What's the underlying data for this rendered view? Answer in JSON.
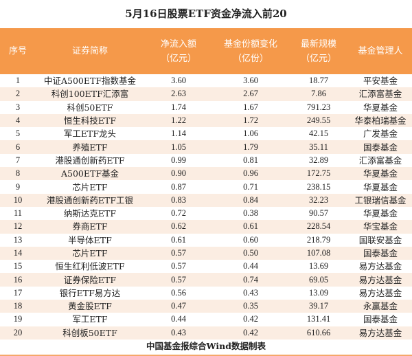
{
  "title": "5月16日股票ETF资金净流入前20",
  "header": {
    "columns": [
      {
        "line1": "序号",
        "line2": ""
      },
      {
        "line1": "证券简称",
        "line2": ""
      },
      {
        "line1": "净流入额",
        "line2": "（亿元）"
      },
      {
        "line1": "基金份额变化",
        "line2": "（亿份）"
      },
      {
        "line1": "最新规模",
        "line2": "（亿元）"
      },
      {
        "line1": "基金管理人",
        "line2": ""
      }
    ]
  },
  "colors": {
    "header_bg": "#F5994A",
    "alt_row_bg": "#FBEDE2",
    "footer_line": "#F5A86A"
  },
  "rows": [
    {
      "rank": "1",
      "name": "中证A500ETF指数基金",
      "net_inflow": "3.60",
      "share_change": "3.60",
      "aum": "18.77",
      "manager": "平安基金"
    },
    {
      "rank": "2",
      "name": "科创100ETF汇添富",
      "net_inflow": "2.63",
      "share_change": "2.67",
      "aum": "7.86",
      "manager": "汇添富基金"
    },
    {
      "rank": "3",
      "name": "科创50ETF",
      "net_inflow": "1.74",
      "share_change": "1.67",
      "aum": "791.23",
      "manager": "华夏基金"
    },
    {
      "rank": "4",
      "name": "恒生科技ETF",
      "net_inflow": "1.22",
      "share_change": "1.72",
      "aum": "249.55",
      "manager": "华泰柏瑞基金"
    },
    {
      "rank": "5",
      "name": "军工ETF龙头",
      "net_inflow": "1.14",
      "share_change": "1.06",
      "aum": "42.15",
      "manager": "广发基金"
    },
    {
      "rank": "6",
      "name": "养殖ETF",
      "net_inflow": "1.05",
      "share_change": "1.79",
      "aum": "35.11",
      "manager": "国泰基金"
    },
    {
      "rank": "7",
      "name": "港股通创新药ETF",
      "net_inflow": "0.99",
      "share_change": "0.81",
      "aum": "32.89",
      "manager": "汇添富基金"
    },
    {
      "rank": "8",
      "name": "A500ETF基金",
      "net_inflow": "0.90",
      "share_change": "0.96",
      "aum": "172.75",
      "manager": "华夏基金"
    },
    {
      "rank": "9",
      "name": "芯片ETF",
      "net_inflow": "0.87",
      "share_change": "0.71",
      "aum": "238.15",
      "manager": "华夏基金"
    },
    {
      "rank": "10",
      "name": "港股通创新药ETF工银",
      "net_inflow": "0.83",
      "share_change": "0.84",
      "aum": "32.23",
      "manager": "工银瑞信基金"
    },
    {
      "rank": "11",
      "name": "纳斯达克ETF",
      "net_inflow": "0.72",
      "share_change": "0.38",
      "aum": "90.57",
      "manager": "华夏基金"
    },
    {
      "rank": "12",
      "name": "券商ETF",
      "net_inflow": "0.62",
      "share_change": "0.61",
      "aum": "228.54",
      "manager": "华宝基金"
    },
    {
      "rank": "13",
      "name": "半导体ETF",
      "net_inflow": "0.61",
      "share_change": "0.60",
      "aum": "218.79",
      "manager": "国联安基金"
    },
    {
      "rank": "14",
      "name": "芯片ETF",
      "net_inflow": "0.57",
      "share_change": "0.50",
      "aum": "107.08",
      "manager": "国泰基金"
    },
    {
      "rank": "15",
      "name": "恒生红利低波ETF",
      "net_inflow": "0.57",
      "share_change": "0.44",
      "aum": "13.69",
      "manager": "易方达基金"
    },
    {
      "rank": "16",
      "name": "证券保险ETF",
      "net_inflow": "0.57",
      "share_change": "0.74",
      "aum": "69.05",
      "manager": "易方达基金"
    },
    {
      "rank": "17",
      "name": "银行ETF易方达",
      "net_inflow": "0.56",
      "share_change": "0.43",
      "aum": "13.09",
      "manager": "易方达基金"
    },
    {
      "rank": "18",
      "name": "黄金股ETF",
      "net_inflow": "0.47",
      "share_change": "0.35",
      "aum": "39.17",
      "manager": "永赢基金"
    },
    {
      "rank": "19",
      "name": "军工ETF",
      "net_inflow": "0.44",
      "share_change": "0.42",
      "aum": "131.41",
      "manager": "国泰基金"
    },
    {
      "rank": "20",
      "name": "科创板50ETF",
      "net_inflow": "0.43",
      "share_change": "0.42",
      "aum": "610.66",
      "manager": "易方达基金"
    }
  ],
  "footer": "中国基金报综合Wind数据制表"
}
